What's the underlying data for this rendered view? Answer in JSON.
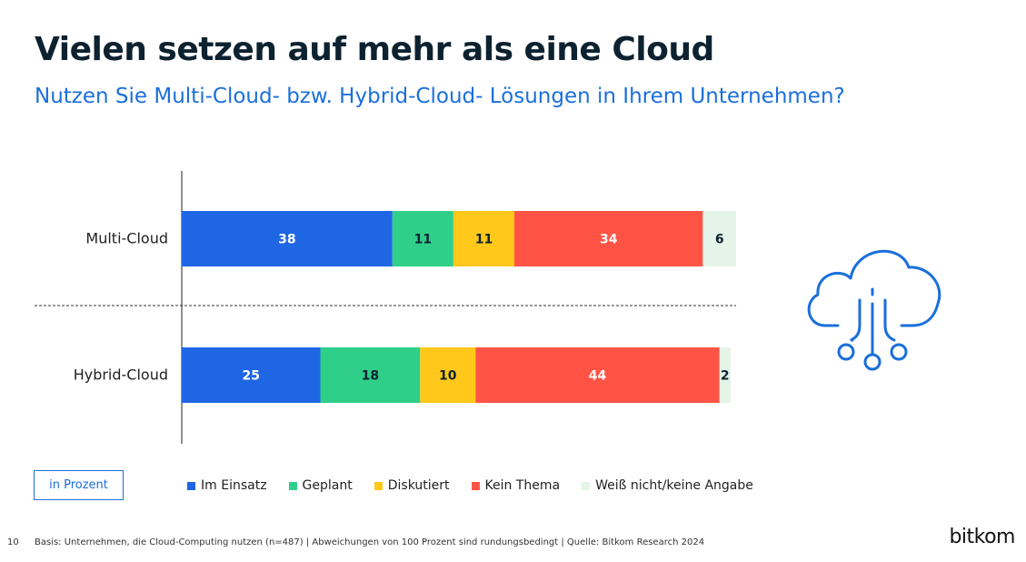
{
  "header": {
    "title": "Vielen setzen auf mehr als eine Cloud",
    "subtitle": "Nutzen Sie Multi-Cloud- bzw. Hybrid-Cloud- Lösungen in Ihrem Unternehmen?"
  },
  "chart_data": {
    "type": "bar",
    "orientation": "horizontal",
    "stacked": true,
    "categories": [
      "Multi-Cloud",
      "Hybrid-Cloud"
    ],
    "series": [
      {
        "name": "Im Einsatz",
        "values": [
          38,
          25
        ],
        "color": "#1f66e5",
        "label_color": "#ffffff"
      },
      {
        "name": "Geplant",
        "values": [
          11,
          18
        ],
        "color": "#2fcf8a",
        "label_color": "#0d2230"
      },
      {
        "name": "Diskutiert",
        "values": [
          11,
          10
        ],
        "color": "#ffc81a",
        "label_color": "#0d2230"
      },
      {
        "name": "Kein Thema",
        "values": [
          34,
          44
        ],
        "color": "#ff5445",
        "label_color": "#ffffff"
      },
      {
        "name": "Weiß nicht/keine Angabe",
        "values": [
          6,
          2
        ],
        "color": "#e4f4e8",
        "label_color": "#0d2230"
      }
    ],
    "unit": "in Prozent",
    "xlim": [
      0,
      100
    ],
    "grid": false,
    "legend_position": "bottom"
  },
  "footer": {
    "page_number": "10",
    "note": "Basis: Unternehmen, die Cloud-Computing nutzen (n=487) | Abweichungen von 100 Prozent sind rundungsbedingt | Quelle: Bitkom Research 2024",
    "brand": "bitkom"
  },
  "icons": {
    "cloud": "cloud-network-icon"
  },
  "colors": {
    "title": "#0d2230",
    "accent": "#1a6fdb"
  }
}
